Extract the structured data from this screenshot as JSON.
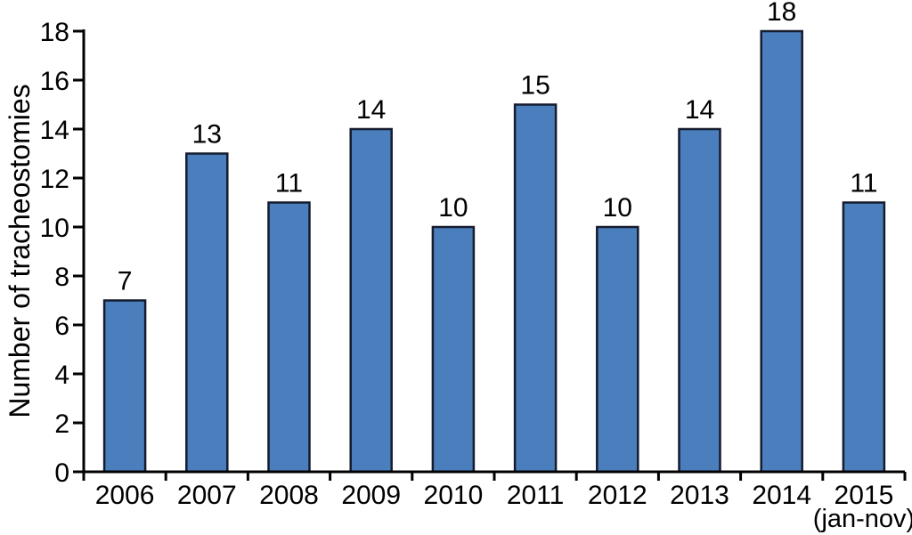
{
  "figure": {
    "background": "#ffffff"
  },
  "chart_data": {
    "type": "bar",
    "title": "",
    "categories": [
      "2006",
      "2007",
      "2008",
      "2009",
      "2010",
      "2011",
      "2012",
      "2013",
      "2014",
      "2015"
    ],
    "values": [
      7,
      13,
      11,
      14,
      10,
      15,
      10,
      14,
      18,
      11
    ],
    "value_labels": [
      "7",
      "13",
      "11",
      "14",
      "10",
      "15",
      "10",
      "14",
      "18",
      "11"
    ],
    "xlabel": "",
    "ylabel": "Number of tracheostomies",
    "x_last_category_note": "(jan-nov)",
    "ylim": [
      0,
      18
    ],
    "yticks": [
      0,
      2,
      4,
      6,
      8,
      10,
      12,
      14,
      16,
      18
    ],
    "grid": false,
    "legend": "none",
    "bar_fill": "#4a7ebc",
    "bar_stroke": "#151c2e",
    "axis_color": "#000000",
    "text_color": "#000000"
  }
}
